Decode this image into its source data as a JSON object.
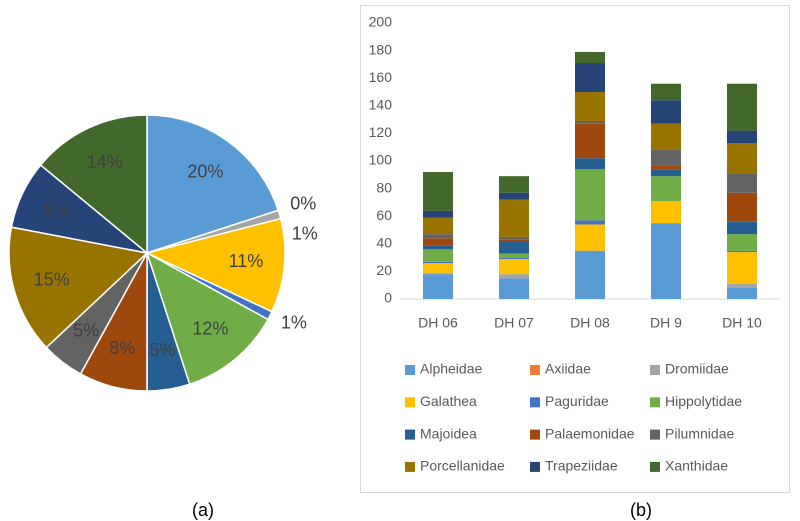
{
  "chart_data": [
    {
      "type": "pie",
      "caption": "(a)",
      "values": [
        20,
        0,
        1,
        11,
        1,
        12,
        5,
        8,
        5,
        15,
        8,
        14
      ],
      "value_labels": [
        "20%",
        "0%",
        "1%",
        "11%",
        "1%",
        "12%",
        "5%",
        "8%",
        "5%",
        "15%",
        "8%",
        "14%"
      ],
      "colors": [
        "#5b9bd5",
        "#ed7d31",
        "#a5a5a5",
        "#ffc000",
        "#4472c4",
        "#70ad47",
        "#255e91",
        "#9e480e",
        "#636363",
        "#997300",
        "#264478",
        "#43682b"
      ]
    },
    {
      "type": "bar",
      "stacked": true,
      "caption": "(b)",
      "categories": [
        "DH 06",
        "DH 07",
        "DH 08",
        "DH 9",
        "DH 10"
      ],
      "ylim": [
        0,
        200
      ],
      "yticks": [
        0,
        20,
        40,
        60,
        80,
        100,
        120,
        140,
        160,
        180,
        200
      ],
      "legend": "bottom",
      "series": [
        {
          "name": "Alpheidae",
          "color": "#5b9bd5",
          "values": [
            18,
            15,
            35,
            55,
            8
          ]
        },
        {
          "name": "Axiidae",
          "color": "#ed7d31",
          "values": [
            0,
            0,
            0,
            0,
            0
          ]
        },
        {
          "name": "Dromiidae",
          "color": "#a5a5a5",
          "values": [
            1,
            3,
            0,
            0,
            3
          ]
        },
        {
          "name": "Galathea",
          "color": "#ffc000",
          "values": [
            7,
            11,
            19,
            16,
            23
          ]
        },
        {
          "name": "Paguridae",
          "color": "#4472c4",
          "values": [
            1,
            1,
            3,
            0,
            1
          ]
        },
        {
          "name": "Hippolytidae",
          "color": "#70ad47",
          "values": [
            9,
            3,
            37,
            18,
            12
          ]
        },
        {
          "name": "Majoidea",
          "color": "#255e91",
          "values": [
            3,
            9,
            8,
            5,
            9
          ]
        },
        {
          "name": "Palaemonidae",
          "color": "#9e480e",
          "values": [
            5,
            1,
            25,
            3,
            21
          ]
        },
        {
          "name": "Pilumnidae",
          "color": "#636363",
          "values": [
            3,
            2,
            2,
            11,
            14
          ]
        },
        {
          "name": "Porcellanidae",
          "color": "#997300",
          "values": [
            12,
            27,
            21,
            19,
            22
          ]
        },
        {
          "name": "Trapeziidae",
          "color": "#264478",
          "values": [
            5,
            5,
            21,
            17,
            9
          ]
        },
        {
          "name": "Xanthidae",
          "color": "#43682b",
          "values": [
            28,
            12,
            8,
            12,
            34
          ]
        }
      ]
    }
  ]
}
